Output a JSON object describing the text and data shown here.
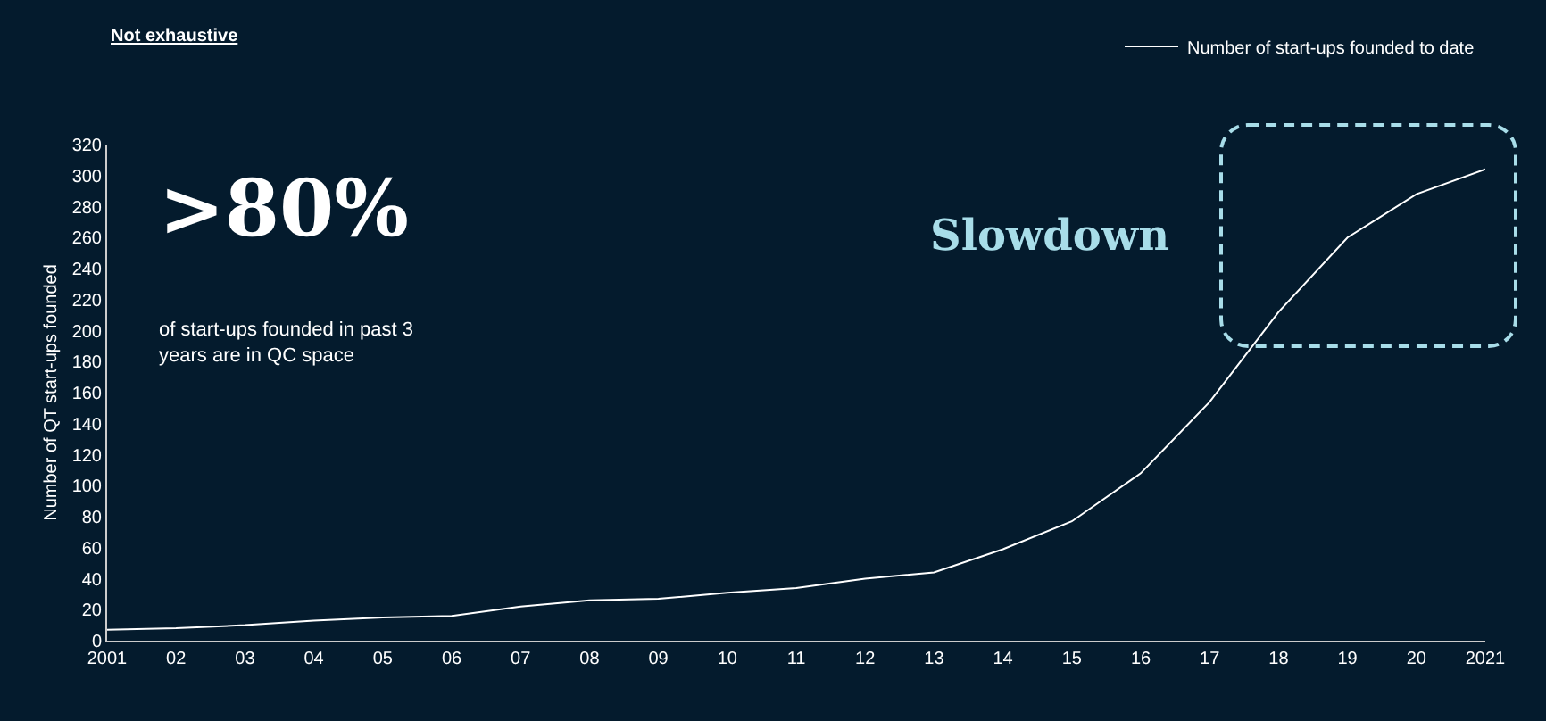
{
  "chart_data": {
    "type": "line",
    "ylabel": "Number of QT start-ups founded",
    "x": [
      2001,
      2002,
      2003,
      2004,
      2005,
      2006,
      2007,
      2008,
      2009,
      2010,
      2011,
      2012,
      2013,
      2014,
      2015,
      2016,
      2017,
      2018,
      2019,
      2020,
      2021
    ],
    "series": [
      {
        "name": "Number of start-ups founded to date",
        "color": "#ffffff",
        "values": [
          7,
          8,
          10,
          13,
          15,
          16,
          22,
          26,
          27,
          31,
          34,
          40,
          44,
          59,
          77,
          108,
          154,
          212,
          260,
          288,
          304
        ]
      }
    ],
    "xlim": [
      2001,
      2021
    ],
    "xticks": [
      2001,
      {
        "value": 2002,
        "label": "02"
      },
      {
        "value": 2003,
        "label": "03"
      },
      {
        "value": 2004,
        "label": "04"
      },
      {
        "value": 2005,
        "label": "05"
      },
      {
        "value": 2006,
        "label": "06"
      },
      {
        "value": 2007,
        "label": "07"
      },
      {
        "value": 2008,
        "label": "08"
      },
      {
        "value": 2009,
        "label": "09"
      },
      {
        "value": 2010,
        "label": "10"
      },
      {
        "value": 2011,
        "label": "11"
      },
      {
        "value": 2012,
        "label": "12"
      },
      {
        "value": 2013,
        "label": "13"
      },
      {
        "value": 2014,
        "label": "14"
      },
      {
        "value": 2015,
        "label": "15"
      },
      {
        "value": 2016,
        "label": "16"
      },
      {
        "value": 2017,
        "label": "17"
      },
      {
        "value": 2018,
        "label": "18"
      },
      {
        "value": 2019,
        "label": "19"
      },
      {
        "value": 2020,
        "label": "20"
      },
      2021
    ],
    "ylim": [
      0,
      320
    ],
    "yticks": [
      0,
      20,
      40,
      60,
      80,
      100,
      120,
      140,
      160,
      180,
      200,
      220,
      240,
      260,
      280,
      300,
      320
    ],
    "grid": false,
    "legend": "top right",
    "marker": "none",
    "line_style": "solid",
    "annotations": [
      "Not exhaustive",
      ">80%",
      "of start-ups founded in past 3\nyears are in QC space",
      "Slowdown"
    ]
  }
}
